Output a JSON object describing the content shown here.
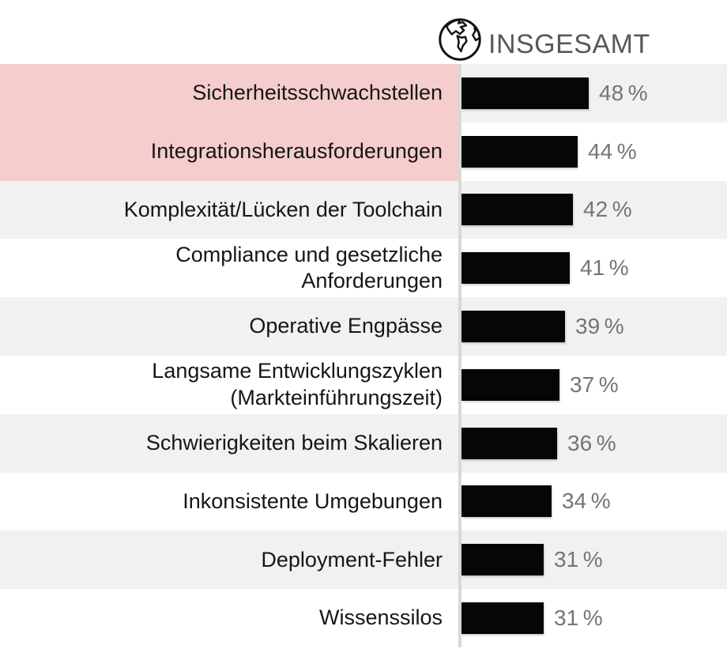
{
  "header": {
    "title": "INSGESAMT",
    "icon": "globe-icon"
  },
  "colors": {
    "background": "#ffffff",
    "highlight_pink": "#f4cdcc",
    "row_alt_gray": "#f1f1f0",
    "bar_black": "#060606",
    "percent_gray": "#757577",
    "divider_gray": "#d8d8d8",
    "title_gray": "#58585a",
    "label_dark": "#161616"
  },
  "chart_data": {
    "type": "bar",
    "orientation": "horizontal",
    "title": "INSGESAMT",
    "unit": "%",
    "xlim": [
      0,
      100
    ],
    "grid": false,
    "legend": false,
    "value_label_position": "right-of-bar",
    "categories": [
      "Sicherheitsschwachstellen",
      "Integrationsherausforderungen",
      "Komplexität/Lücken der Toolchain",
      "Compliance und gesetzliche Anforderungen",
      "Operative Engpässe",
      "Langsame Entwicklungszyklen (Markteinführungszeit)",
      "Schwierigkeiten beim Skalieren",
      "Inkonsistente Umgebungen",
      "Deployment-Fehler",
      "Wissenssilos"
    ],
    "category_display": [
      "Sicherheitsschwachstellen",
      "Integrationsherausforderungen",
      "Komplexität/Lücken der Toolchain",
      "Compliance und gesetzliche\nAnforderungen",
      "Operative Engpässe",
      "Langsame Entwicklungszyklen\n(Markteinführungszeit)",
      "Schwierigkeiten beim Skalieren",
      "Inkonsistente Umgebungen",
      "Deployment-Fehler",
      "Wissenssilos"
    ],
    "values": [
      48,
      44,
      42,
      41,
      39,
      37,
      36,
      34,
      31,
      31
    ],
    "value_labels": [
      "48 %",
      "44 %",
      "42 %",
      "41 %",
      "39 %",
      "37 %",
      "36 %",
      "34 %",
      "31 %",
      "31 %"
    ],
    "highlighted": [
      true,
      true,
      false,
      false,
      false,
      false,
      false,
      false,
      false,
      false
    ]
  }
}
